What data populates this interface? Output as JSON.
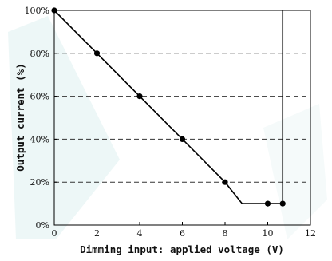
{
  "chart_data": {
    "type": "line",
    "xlabel": "Dimming input: applied voltage (V)",
    "ylabel": "Output current (%)",
    "xlim": [
      0,
      12
    ],
    "ylim": [
      0,
      100
    ],
    "x_ticks": [
      "0",
      "2",
      "4",
      "6",
      "8",
      "10",
      "12"
    ],
    "y_ticks": [
      "0%",
      "20%",
      "40%",
      "60%",
      "80%",
      "100%"
    ],
    "grid": "horizontal dashed",
    "series": [
      {
        "line": [
          {
            "x": 0,
            "y": 100
          },
          {
            "x": 8,
            "y": 20
          },
          {
            "x": 8.8,
            "y": 10
          },
          {
            "x": 10.7,
            "y": 10
          },
          {
            "x": 10.7,
            "y": 100
          }
        ],
        "markers": [
          {
            "x": 0,
            "y": 100
          },
          {
            "x": 2,
            "y": 80
          },
          {
            "x": 4,
            "y": 60
          },
          {
            "x": 6,
            "y": 40
          },
          {
            "x": 8,
            "y": 20
          },
          {
            "x": 10,
            "y": 10
          },
          {
            "x": 10.7,
            "y": 10
          }
        ]
      }
    ],
    "colors": {
      "line": "#000000",
      "grid": "#333333",
      "watermark": "#dff0ef"
    }
  }
}
